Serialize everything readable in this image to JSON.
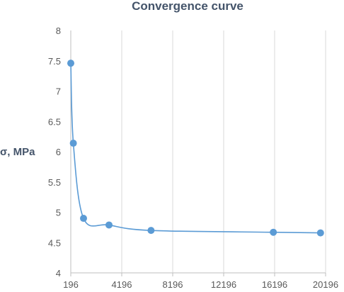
{
  "chart_data": {
    "type": "scatter",
    "title": "Convergence curve",
    "xlabel": "",
    "ylabel": "σ, MPa",
    "xlim": [
      196,
      20196
    ],
    "ylim": [
      4,
      8
    ],
    "x_ticks": [
      "196",
      "4196",
      "8196",
      "12196",
      "16196",
      "20196"
    ],
    "y_ticks": [
      "4",
      "4.5",
      "5",
      "5.5",
      "6",
      "6.5",
      "7",
      "7.5",
      "8"
    ],
    "grid": "vertical",
    "smoothed_line": true,
    "series": [
      {
        "x": [
          196,
          396,
          1196,
          3196,
          6496,
          16096,
          19796
        ],
        "y": [
          7.46,
          6.14,
          4.9,
          4.79,
          4.7,
          4.67,
          4.66
        ]
      }
    ],
    "colors": {
      "series": "#5b9bd5",
      "grid": "#d9d9d9",
      "axis": "#bfbfbf",
      "text": "#595959",
      "title": "#44546a"
    }
  }
}
